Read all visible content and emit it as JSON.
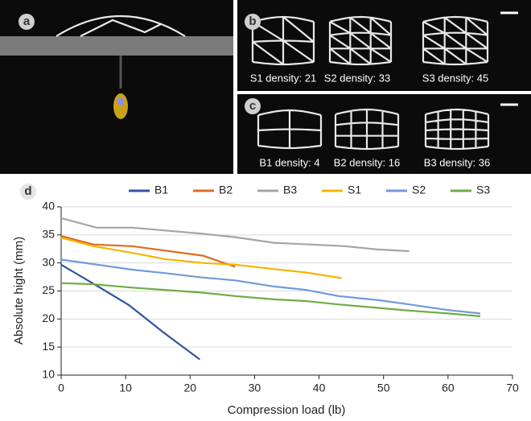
{
  "panels": [
    {
      "label": "a"
    },
    {
      "label": "b",
      "captions": [
        "S1 density: 21",
        "S2 density: 33",
        "S3 density: 45"
      ]
    },
    {
      "label": "c",
      "captions": [
        "B1 density: 4",
        "B2 density: 16",
        "B3 density: 36"
      ]
    }
  ],
  "chart_data": {
    "type": "line",
    "label": "d",
    "x_label": "Compression load (lb)",
    "y_label": "Absolute hight (mm)",
    "xlim": [
      0,
      70
    ],
    "xticks": [
      0,
      10,
      20,
      30,
      40,
      50,
      60,
      70
    ],
    "ylim": [
      10,
      40
    ],
    "yticks": [
      10,
      15,
      20,
      25,
      30,
      35,
      40
    ],
    "grid": true,
    "legend": "top",
    "series": [
      {
        "name": "B1",
        "color": "#2f55a0",
        "x": [
          0,
          5,
          10.5,
          16,
          21.5
        ],
        "values": [
          29.7,
          26.3,
          22.5,
          17.5,
          12.8
        ]
      },
      {
        "name": "B2",
        "color": "#e06c1f",
        "x": [
          0,
          5,
          11,
          22,
          27
        ],
        "values": [
          34.8,
          33.3,
          33,
          31.3,
          29.3
        ]
      },
      {
        "name": "B3",
        "color": "#a5a5a5",
        "x": [
          0,
          5.5,
          11,
          22,
          27,
          33,
          44,
          49,
          54
        ],
        "values": [
          38,
          36.3,
          36.3,
          35.2,
          34.6,
          33.6,
          33,
          32.4,
          32.1
        ]
      },
      {
        "name": "S1",
        "color": "#f5b400",
        "x": [
          0,
          5,
          11,
          16,
          22,
          27,
          33,
          38,
          43.5
        ],
        "values": [
          34.5,
          33,
          31.8,
          30.7,
          30,
          29.7,
          28.9,
          28.3,
          27.3
        ]
      },
      {
        "name": "S2",
        "color": "#6f9bd8",
        "x": [
          0,
          5,
          11,
          16,
          22,
          27,
          33,
          38,
          43,
          49,
          54,
          60,
          65
        ],
        "values": [
          30.6,
          29.8,
          28.8,
          28.2,
          27.4,
          26.9,
          25.8,
          25.2,
          24.1,
          23.4,
          22.6,
          21.6,
          21
        ]
      },
      {
        "name": "S3",
        "color": "#6fac46",
        "x": [
          0,
          5,
          11,
          16,
          22,
          27,
          33,
          38,
          43,
          49,
          54,
          60,
          65
        ],
        "values": [
          26.4,
          26.2,
          25.6,
          25.2,
          24.7,
          24.1,
          23.5,
          23.2,
          22.6,
          22,
          21.5,
          21,
          20.5
        ]
      }
    ]
  }
}
